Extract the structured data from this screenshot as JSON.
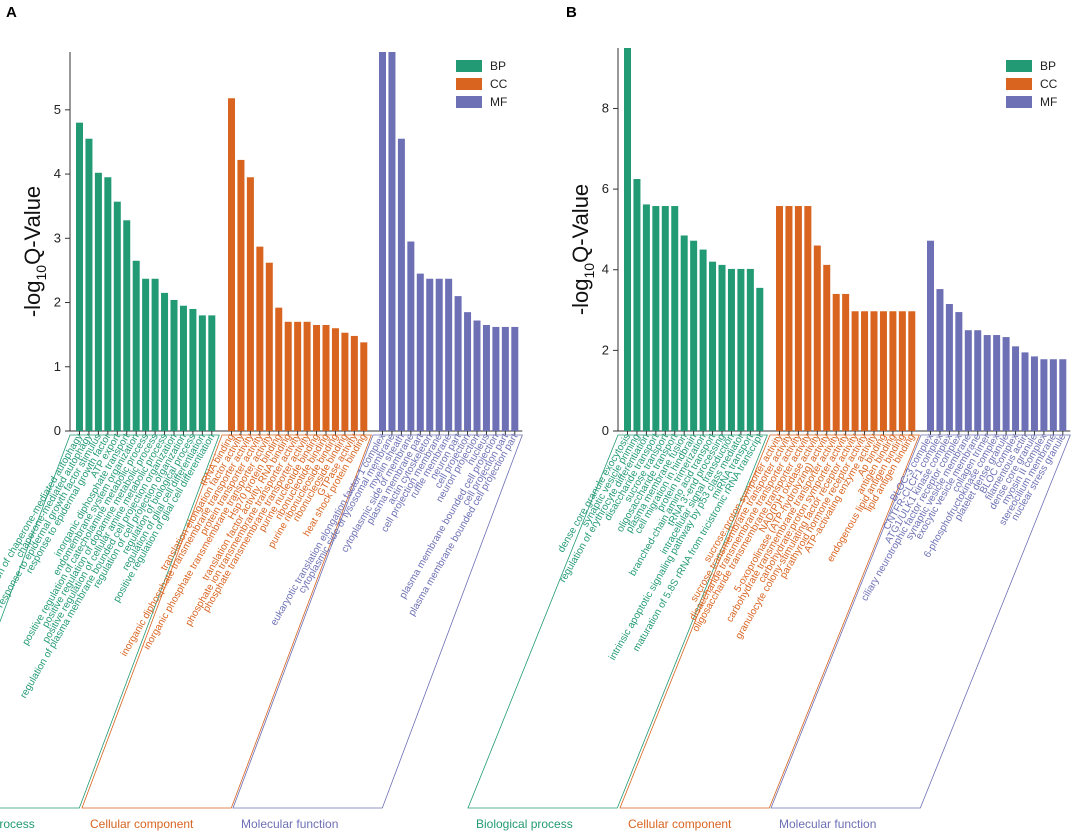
{
  "colors": {
    "BP": "#229a74",
    "CC": "#d86420",
    "MF": "#6d70b4"
  },
  "legend": [
    "BP",
    "CC",
    "MF"
  ],
  "group_labels": {
    "BP": "Biological process",
    "CC": "Cellular component",
    "MF": "Molecular function"
  },
  "chart_data": [
    {
      "panel": "A",
      "type": "bar",
      "ylabel_main": "-log",
      "ylabel_sub": "10",
      "ylabel_tail": "Q-Value",
      "ylim": [
        0,
        5.9
      ],
      "yticks": [
        0,
        1,
        2,
        3,
        4,
        5
      ],
      "groups": [
        {
          "name": "BP",
          "categories": [
            "regulation of chaperone-mediated autophagy",
            "chaperone-mediated autophagy",
            "cellular response to epidermal growth factor stimulus",
            "response to epidermal growth factor",
            "ATP export",
            "inorganic diphosphate transport",
            "endomembrane system organization",
            "positive regulation of catecholamine metabolic process",
            "positive regulation of dopamine metabolic process",
            "positive regulation of cellular amine metabolic process",
            "regulation of plasma membrane bounded cell projection organization",
            "regulation of cell projection organization",
            "regulation of biological process",
            "regulation of glial cell differentiation",
            "positive regulation of glial cell differentiation"
          ],
          "values": [
            4.8,
            4.55,
            4.02,
            3.95,
            3.57,
            3.28,
            2.65,
            2.37,
            2.37,
            2.15,
            2.04,
            1.95,
            1.9,
            1.8,
            1.8
          ]
        },
        {
          "name": "CC",
          "categories": [
            "tRNA binding",
            "translation elongation factor activity",
            "inorganic diphosphate transmembrane transporter activity",
            "protein transporter activity",
            "inorganic phosphate transmembrane transporter activity",
            "Hsp70 protein binding",
            "translation factor activity, RNA binding",
            "phosphate ion transmembrane transporter activity",
            "phosphate transmembrane transporter activity",
            "purine nucleotide binding",
            "ribonucleotide binding",
            "purine ribonucleoside binding",
            "ribonucleoside binding",
            "GTPase activity",
            "heat shock protein binding"
          ],
          "values": [
            5.18,
            4.22,
            3.95,
            2.87,
            2.62,
            1.92,
            1.7,
            1.7,
            1.7,
            1.65,
            1.65,
            1.6,
            1.53,
            1.48,
            1.38
          ]
        },
        {
          "name": "MF",
          "categories": [
            "eukaryotic translation elongation factor 1 complex",
            "cytoplasmic side of lysosomal membrane",
            "myelin sheath",
            "cytoplasmic side of membrane",
            "plasma membrane part",
            "actin cytoskeleton",
            "cell projection membrane",
            "ruffle membrane",
            "neuron part",
            "cell projection",
            "neuron projection",
            "nucleus",
            "plasma membrane bounded cell projection",
            "cell projection part",
            "plasma membrane bounded cell projection part"
          ],
          "values": [
            5.9,
            5.9,
            4.55,
            2.95,
            2.45,
            2.37,
            2.37,
            2.37,
            2.1,
            1.85,
            1.72,
            1.65,
            1.62,
            1.62,
            1.62
          ]
        }
      ]
    },
    {
      "panel": "B",
      "type": "bar",
      "ylabel_main": "-log",
      "ylabel_sub": "10",
      "ylabel_tail": "Q-Value",
      "ylim": [
        0,
        9.5
      ],
      "yticks": [
        0,
        2,
        4,
        6,
        8
      ],
      "groups": [
        {
          "name": "BP",
          "categories": [
            "dense core granule exocytosis",
            "synaptic vesicle priming",
            "regulation of erythrocyte differentiation",
            "disaccharide transport",
            "sucrose transport",
            "oligosaccharide transport",
            "plasma membrane fusion",
            "cell migration in hindbrain",
            "protein trimerization",
            "branched-chain amino acid transport",
            "tRNA 3'-end processing",
            "intracellular signal transduction",
            "intrinsic apoptotic signaling pathway by p53 class mediator",
            "miRNA transport",
            "maturation of 5.8S rRNA from tricistronic rRNA transcript"
          ],
          "values": [
            9.5,
            6.25,
            5.62,
            5.58,
            5.58,
            5.58,
            4.85,
            4.72,
            4.5,
            4.2,
            4.12,
            4.02,
            4.02,
            4.02,
            3.55
          ]
        },
        {
          "name": "CC",
          "categories": [
            "sucrose:proton symporter activity",
            "sucrose transmembrane transporter activity",
            "disaccharide transmembrane transporter activity",
            "oligosaccharide transmembrane transporter activity",
            "NAD(P)H oxidase activity",
            "5-oxoprolinase (ATP-hydrolyzing) activity",
            "carbohydrate transmembrane transporter activity",
            "carbohydrate:proton symporter activity",
            "granulocyte colony-stimulating factor receptor activity",
            "parathyroid hormone receptor activity",
            "ATP-activating enzyme activity",
            "Ap binding",
            "antigen binding",
            "endogenous lipid antigen binding",
            "lipid antigen binding"
          ],
          "values": [
            5.58,
            5.58,
            5.58,
            5.58,
            4.6,
            4.12,
            3.4,
            3.4,
            2.97,
            2.97,
            2.97,
            2.97,
            2.97,
            2.97,
            2.97
          ]
        },
        {
          "name": "MF",
          "categories": [
            "BLOC-3 complex",
            "CNTFR-CLCF1 complex",
            "ATG1/ULK1 kinase complex",
            "ciliary neurotrophic factor receptor complex",
            "synaptic vesicle membrane",
            "exocytic vesicle membrane",
            "collagen trimer",
            "6-phosphofructokinase complex",
            "platelet dense granule",
            "BLOC complex",
            "filamentous actin",
            "dense core granule",
            "myosin II complex",
            "stereocilium membrane",
            "nuclear stress granule"
          ],
          "values": [
            4.72,
            3.52,
            3.15,
            2.95,
            2.5,
            2.5,
            2.38,
            2.38,
            2.33,
            2.1,
            1.95,
            1.85,
            1.78,
            1.78,
            1.78
          ]
        }
      ]
    }
  ]
}
